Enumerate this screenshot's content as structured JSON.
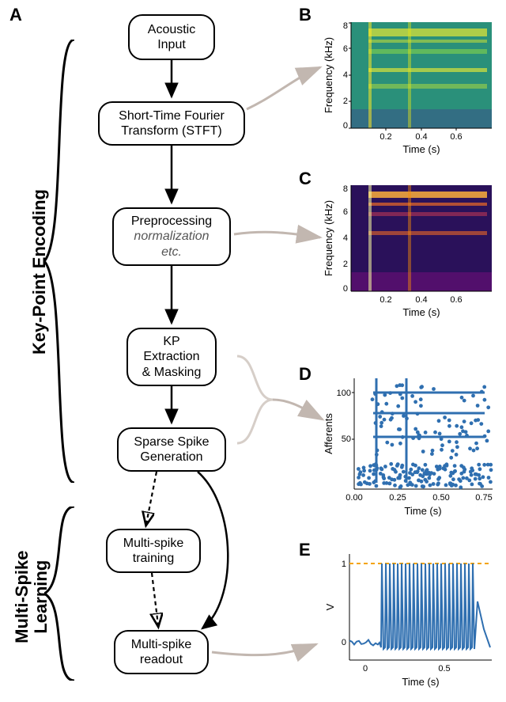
{
  "panel_labels": {
    "A": "A",
    "B": "B",
    "C": "C",
    "D": "D",
    "E": "E"
  },
  "flowchart": {
    "boxes": {
      "acoustic": {
        "lines": [
          "Acoustic",
          "Input"
        ]
      },
      "stft": {
        "lines": [
          "Short-Time Fourier",
          "Transform (STFT)"
        ]
      },
      "preprocess": {
        "lines": [
          "Preprocessing"
        ],
        "italic_lines": [
          "normalization",
          "etc."
        ]
      },
      "kp": {
        "lines": [
          "KP",
          "Extraction",
          "& Masking"
        ]
      },
      "sparse": {
        "lines": [
          "Sparse Spike",
          "Generation"
        ]
      },
      "train": {
        "lines": [
          "Multi-spike",
          "training"
        ]
      },
      "readout": {
        "lines": [
          "Multi-spike",
          "readout"
        ]
      }
    },
    "arrow_color": "#000000",
    "connector_color": "#c2b7b0"
  },
  "section_labels": {
    "kp_encoding": "Key-Point Encoding",
    "ms_learning": "Multi-Spike\nLearning"
  },
  "colors": {
    "spectrogram_bg_b": "#2a907a",
    "spectrogram_bg_c": "#3b0f70",
    "scatter_point": "#2f6fb0",
    "trace_line": "#2f6fb0",
    "threshold_line": "#f4a300",
    "axis": "#000000"
  },
  "chartB": {
    "xlabel": "Time (s)",
    "ylabel": "Frequency (kHz)",
    "xlim": [
      0,
      0.8
    ],
    "ylim": [
      0,
      8
    ],
    "xticks": [
      0.2,
      0.4,
      0.6
    ],
    "yticks": [
      2,
      4,
      6,
      8
    ],
    "fontsize": 12
  },
  "chartC": {
    "xlabel": "Time (s)",
    "ylabel": "Frequency (kHz)",
    "xlim": [
      0,
      0.8
    ],
    "ylim": [
      0,
      8
    ],
    "xticks": [
      0.2,
      0.4,
      0.6
    ],
    "yticks": [
      2,
      4,
      6,
      8
    ],
    "fontsize": 12
  },
  "chartD": {
    "xlabel": "Time (s)",
    "ylabel": "Afferents",
    "xlim": [
      0,
      0.8
    ],
    "ylim": [
      0,
      120
    ],
    "xticks": [
      0.0,
      0.25,
      0.5,
      0.75
    ],
    "yticks": [
      50,
      100
    ],
    "fontsize": 12
  },
  "chartE": {
    "xlabel": "Time (s)",
    "ylabel": "V",
    "xlim": [
      -0.1,
      0.8
    ],
    "ylim": [
      -0.2,
      1.1
    ],
    "xticks": [
      0,
      0.5
    ],
    "yticks": [
      0,
      1
    ],
    "threshold": 1.0,
    "fontsize": 12
  }
}
